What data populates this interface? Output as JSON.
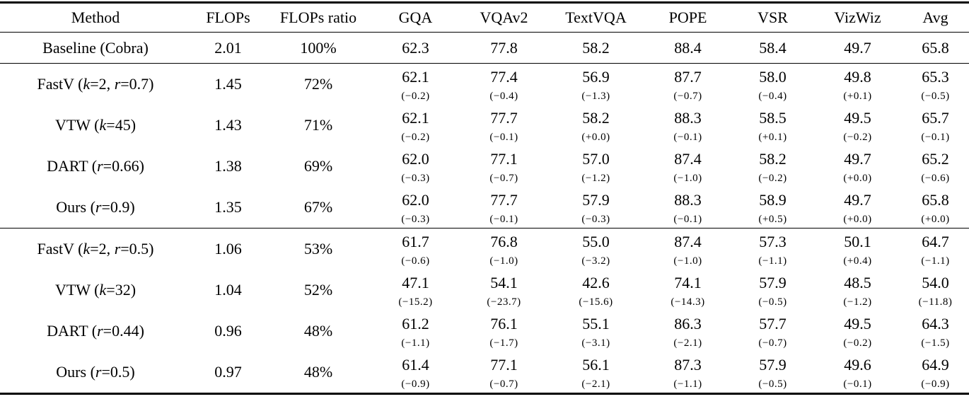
{
  "columns": [
    "Method",
    "FLOPs",
    "FLOPs ratio",
    "GQA",
    "VQAv2",
    "TextVQA",
    "POPE",
    "VSR",
    "VizWiz",
    "Avg"
  ],
  "groups": [
    {
      "rows": [
        {
          "method_parts": [
            {
              "text": "Baseline (Cobra)",
              "italic": false
            }
          ],
          "flops": "2.01",
          "ratio": "100%",
          "cells": [
            {
              "value": "62.3"
            },
            {
              "value": "77.8"
            },
            {
              "value": "58.2"
            },
            {
              "value": "88.4"
            },
            {
              "value": "58.4"
            },
            {
              "value": "49.7"
            },
            {
              "value": "65.8"
            }
          ]
        }
      ]
    },
    {
      "rows": [
        {
          "method_parts": [
            {
              "text": "FastV (",
              "italic": false
            },
            {
              "text": "k",
              "italic": true
            },
            {
              "text": "=2, ",
              "italic": false
            },
            {
              "text": "r",
              "italic": true
            },
            {
              "text": "=0.7)",
              "italic": false
            }
          ],
          "flops": "1.45",
          "ratio": "72%",
          "cells": [
            {
              "value": "62.1",
              "delta": "(−0.2)"
            },
            {
              "value": "77.4",
              "delta": "(−0.4)"
            },
            {
              "value": "56.9",
              "delta": "(−1.3)"
            },
            {
              "value": "87.7",
              "delta": "(−0.7)"
            },
            {
              "value": "58.0",
              "delta": "(−0.4)"
            },
            {
              "value": "49.8",
              "delta": "(+0.1)"
            },
            {
              "value": "65.3",
              "delta": "(−0.5)"
            }
          ]
        },
        {
          "method_parts": [
            {
              "text": "VTW (",
              "italic": false
            },
            {
              "text": "k",
              "italic": true
            },
            {
              "text": "=45)",
              "italic": false
            }
          ],
          "flops": "1.43",
          "ratio": "71%",
          "cells": [
            {
              "value": "62.1",
              "delta": "(−0.2)"
            },
            {
              "value": "77.7",
              "delta": "(−0.1)"
            },
            {
              "value": "58.2",
              "delta": "(+0.0)"
            },
            {
              "value": "88.3",
              "delta": "(−0.1)"
            },
            {
              "value": "58.5",
              "delta": "(+0.1)"
            },
            {
              "value": "49.5",
              "delta": "(−0.2)"
            },
            {
              "value": "65.7",
              "delta": "(−0.1)"
            }
          ]
        },
        {
          "method_parts": [
            {
              "text": "DART (",
              "italic": false
            },
            {
              "text": "r",
              "italic": true
            },
            {
              "text": "=0.66)",
              "italic": false
            }
          ],
          "flops": "1.38",
          "ratio": "69%",
          "cells": [
            {
              "value": "62.0",
              "delta": "(−0.3)"
            },
            {
              "value": "77.1",
              "delta": "(−0.7)"
            },
            {
              "value": "57.0",
              "delta": "(−1.2)"
            },
            {
              "value": "87.4",
              "delta": "(−1.0)"
            },
            {
              "value": "58.2",
              "delta": "(−0.2)"
            },
            {
              "value": "49.7",
              "delta": "(+0.0)"
            },
            {
              "value": "65.2",
              "delta": "(−0.6)"
            }
          ]
        },
        {
          "method_parts": [
            {
              "text": "Ours (",
              "italic": false
            },
            {
              "text": "r",
              "italic": true
            },
            {
              "text": "=0.9)",
              "italic": false
            }
          ],
          "flops": "1.35",
          "ratio": "67%",
          "cells": [
            {
              "value": "62.0",
              "delta": "(−0.3)"
            },
            {
              "value": "77.7",
              "delta": "(−0.1)"
            },
            {
              "value": "57.9",
              "delta": "(−0.3)"
            },
            {
              "value": "88.3",
              "delta": "(−0.1)"
            },
            {
              "value": "58.9",
              "delta": "(+0.5)"
            },
            {
              "value": "49.7",
              "delta": "(+0.0)"
            },
            {
              "value": "65.8",
              "delta": "(+0.0)"
            }
          ]
        }
      ]
    },
    {
      "rows": [
        {
          "method_parts": [
            {
              "text": "FastV (",
              "italic": false
            },
            {
              "text": "k",
              "italic": true
            },
            {
              "text": "=2, ",
              "italic": false
            },
            {
              "text": "r",
              "italic": true
            },
            {
              "text": "=0.5)",
              "italic": false
            }
          ],
          "flops": "1.06",
          "ratio": "53%",
          "cells": [
            {
              "value": "61.7",
              "delta": "(−0.6)"
            },
            {
              "value": "76.8",
              "delta": "(−1.0)"
            },
            {
              "value": "55.0",
              "delta": "(−3.2)"
            },
            {
              "value": "87.4",
              "delta": "(−1.0)"
            },
            {
              "value": "57.3",
              "delta": "(−1.1)"
            },
            {
              "value": "50.1",
              "delta": "(+0.4)"
            },
            {
              "value": "64.7",
              "delta": "(−1.1)"
            }
          ]
        },
        {
          "method_parts": [
            {
              "text": "VTW (",
              "italic": false
            },
            {
              "text": "k",
              "italic": true
            },
            {
              "text": "=32)",
              "italic": false
            }
          ],
          "flops": "1.04",
          "ratio": "52%",
          "cells": [
            {
              "value": "47.1",
              "delta": "(−15.2)"
            },
            {
              "value": "54.1",
              "delta": "(−23.7)"
            },
            {
              "value": "42.6",
              "delta": "(−15.6)"
            },
            {
              "value": "74.1",
              "delta": "(−14.3)"
            },
            {
              "value": "57.9",
              "delta": "(−0.5)"
            },
            {
              "value": "48.5",
              "delta": "(−1.2)"
            },
            {
              "value": "54.0",
              "delta": "(−11.8)"
            }
          ]
        },
        {
          "method_parts": [
            {
              "text": "DART (",
              "italic": false
            },
            {
              "text": "r",
              "italic": true
            },
            {
              "text": "=0.44)",
              "italic": false
            }
          ],
          "flops": "0.96",
          "ratio": "48%",
          "cells": [
            {
              "value": "61.2",
              "delta": "(−1.1)"
            },
            {
              "value": "76.1",
              "delta": "(−1.7)"
            },
            {
              "value": "55.1",
              "delta": "(−3.1)"
            },
            {
              "value": "86.3",
              "delta": "(−2.1)"
            },
            {
              "value": "57.7",
              "delta": "(−0.7)"
            },
            {
              "value": "49.5",
              "delta": "(−0.2)"
            },
            {
              "value": "64.3",
              "delta": "(−1.5)"
            }
          ]
        },
        {
          "method_parts": [
            {
              "text": "Ours (",
              "italic": false
            },
            {
              "text": "r",
              "italic": true
            },
            {
              "text": "=0.5)",
              "italic": false
            }
          ],
          "flops": "0.97",
          "ratio": "48%",
          "cells": [
            {
              "value": "61.4",
              "delta": "(−0.9)"
            },
            {
              "value": "77.1",
              "delta": "(−0.7)"
            },
            {
              "value": "56.1",
              "delta": "(−2.1)"
            },
            {
              "value": "87.3",
              "delta": "(−1.1)"
            },
            {
              "value": "57.9",
              "delta": "(−0.5)"
            },
            {
              "value": "49.6",
              "delta": "(−0.1)"
            },
            {
              "value": "64.9",
              "delta": "(−0.9)"
            }
          ]
        }
      ]
    }
  ]
}
